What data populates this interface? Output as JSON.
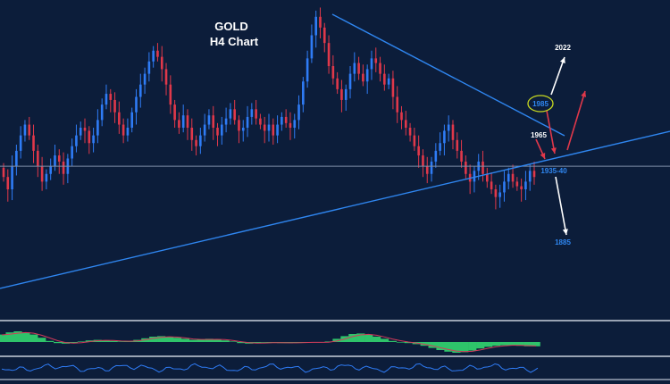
{
  "chart_data": {
    "type": "candlestick",
    "title": "GOLD",
    "subtitle": "H4 Chart",
    "colors": {
      "background": "#0c1d3a",
      "bull": "#2f7cf6",
      "bear": "#e0384a",
      "trendline": "#2f86f0",
      "level_line": "#7f90a8",
      "bull_arrow": "#ffffff",
      "bear_arrow": "#e0384a",
      "histogram": "#2ec46a",
      "signal": "#d23a5a",
      "separator": "#9aa4b4",
      "oscillator": "#2f7cf6"
    },
    "closes": [
      1958,
      1950,
      1965,
      1975,
      1985,
      1992,
      1985,
      1975,
      1965,
      1955,
      1960,
      1965,
      1972,
      1968,
      1960,
      1970,
      1978,
      1985,
      1990,
      1988,
      1980,
      1985,
      1995,
      2005,
      2012,
      2008,
      2000,
      1992,
      1985,
      1990,
      2000,
      2010,
      2018,
      2025,
      2033,
      2040,
      2036,
      2028,
      2018,
      2005,
      1995,
      1990,
      1998,
      1990,
      1982,
      1978,
      1985,
      1992,
      1998,
      1990,
      1985,
      1992,
      1996,
      2002,
      1995,
      1988,
      1990,
      1997,
      2002,
      1996,
      1992,
      1988,
      1992,
      1985,
      1992,
      1997,
      1993,
      1990,
      1995,
      2005,
      2020,
      2035,
      2050,
      2062,
      2055,
      2045,
      2030,
      2022,
      2015,
      2008,
      2015,
      2025,
      2032,
      2025,
      2020,
      2028,
      2035,
      2032,
      2025,
      2018,
      2022,
      2010,
      2000,
      1995,
      1990,
      1985,
      1978,
      1972,
      1965,
      1960,
      1968,
      1975,
      1980,
      1988,
      1992,
      1982,
      1975,
      1968,
      1960,
      1955,
      1962,
      1968,
      1960,
      1955,
      1950,
      1945,
      1948,
      1955,
      1960,
      1955,
      1952,
      1950,
      1955,
      1962,
      1958
    ],
    "price_axis_ref": {
      "price_top": 2070,
      "price_bottom": 1870
    },
    "horizontal_level": 1965,
    "annotations": [
      {
        "text": "2022",
        "color": "#ffffff"
      },
      {
        "text": "1985",
        "color": "#2f86f0",
        "circled": true,
        "circle_color": "#c8d820"
      },
      {
        "text": "1965",
        "color": "#ffffff"
      },
      {
        "text": "1935-40",
        "color": "#2f86f0"
      },
      {
        "text": "1885",
        "color": "#2f86f0"
      }
    ],
    "indicator_histogram": [
      0.7,
      0.9,
      1.0,
      0.9,
      0.7,
      0.4,
      0.1,
      -0.1,
      -0.15,
      -0.1,
      0.05,
      0.15,
      0.2,
      0.15,
      0.1,
      0.05,
      0.1,
      0.2,
      0.35,
      0.5,
      0.55,
      0.5,
      0.4,
      0.3,
      0.2,
      0.25,
      0.3,
      0.25,
      0.15,
      0.05,
      -0.1,
      -0.15,
      -0.1,
      -0.05,
      -0.05,
      -0.1,
      -0.1,
      -0.05,
      0.0,
      -0.05,
      -0.05,
      0.05,
      0.3,
      0.55,
      0.75,
      0.8,
      0.7,
      0.5,
      0.3,
      0.1,
      0.0,
      -0.1,
      -0.2,
      -0.35,
      -0.55,
      -0.75,
      -0.9,
      -1.0,
      -0.95,
      -0.8,
      -0.6,
      -0.45,
      -0.35,
      -0.3,
      -0.3,
      -0.35,
      -0.4,
      -0.4
    ]
  }
}
